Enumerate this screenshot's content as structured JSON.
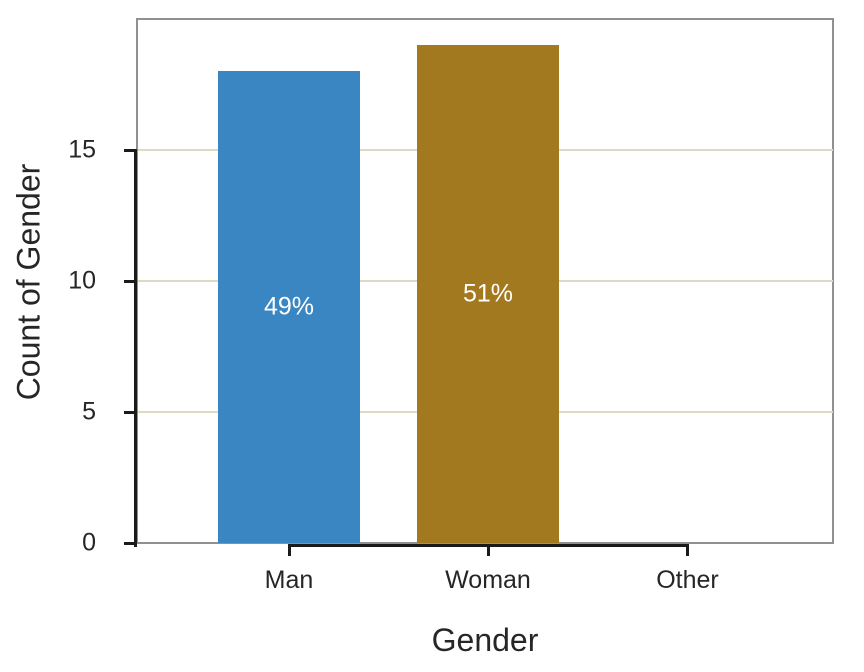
{
  "figure": {
    "background": "#ffffff",
    "panel_border_color": "#909090",
    "grid_color": "#ded9c3",
    "spine_color": "#1a1a1a",
    "text_color": "#262626",
    "bar_label_color": "#ffffff"
  },
  "chart_data": {
    "type": "bar",
    "title": "",
    "xlabel": "Gender",
    "ylabel": "Count of Gender",
    "categories": [
      "Man",
      "Woman",
      "Other"
    ],
    "values": [
      18,
      19,
      0
    ],
    "bar_labels": [
      "49%",
      "51%",
      ""
    ],
    "bar_colors": [
      "#3a86c3",
      "#a2791e",
      null
    ],
    "yticks": [
      0,
      5,
      10,
      15
    ],
    "ylim": [
      0,
      20.05
    ],
    "grid": "horizontal-major",
    "legend": "none",
    "bar_label_position": "bar-center"
  }
}
